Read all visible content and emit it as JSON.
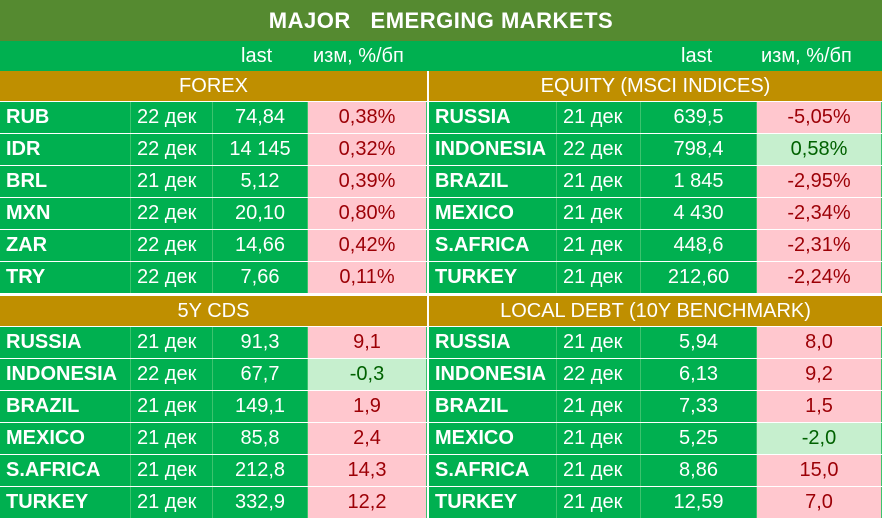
{
  "title": "MAJOR   EMERGING MARKETS",
  "columns": {
    "last": "last",
    "change": "изм, %/бп"
  },
  "quadrants": [
    {
      "section": "FOREX",
      "rows": [
        {
          "name": "RUB",
          "date": "22 дек",
          "last": "74,84",
          "change": "0,38%",
          "dir": "pos"
        },
        {
          "name": "IDR",
          "date": "22 дек",
          "last": "14 145",
          "change": "0,32%",
          "dir": "pos"
        },
        {
          "name": "BRL",
          "date": "21 дек",
          "last": "5,12",
          "change": "0,39%",
          "dir": "pos"
        },
        {
          "name": "MXN",
          "date": "22 дек",
          "last": "20,10",
          "change": "0,80%",
          "dir": "pos"
        },
        {
          "name": "ZAR",
          "date": "22 дек",
          "last": "14,66",
          "change": "0,42%",
          "dir": "pos"
        },
        {
          "name": "TRY",
          "date": "22 дек",
          "last": "7,66",
          "change": "0,11%",
          "dir": "pos"
        }
      ]
    },
    {
      "section": "EQUITY (MSCI INDICES)",
      "rows": [
        {
          "name": "RUSSIA",
          "date": "21 дек",
          "last": "639,5",
          "change": "-5,05%",
          "dir": "pos"
        },
        {
          "name": "INDONESIA",
          "date": "22 дек",
          "last": "798,4",
          "change": "0,58%",
          "dir": "neg"
        },
        {
          "name": "BRAZIL",
          "date": "21 дек",
          "last": "1 845",
          "change": "-2,95%",
          "dir": "pos"
        },
        {
          "name": "MEXICO",
          "date": "21 дек",
          "last": "4 430",
          "change": "-2,34%",
          "dir": "pos"
        },
        {
          "name": "S.AFRICA",
          "date": "21 дек",
          "last": "448,6",
          "change": "-2,31%",
          "dir": "pos"
        },
        {
          "name": "TURKEY",
          "date": "21 дек",
          "last": "212,60",
          "change": "-2,24%",
          "dir": "pos"
        }
      ]
    },
    {
      "section": "5Y CDS",
      "rows": [
        {
          "name": "RUSSIA",
          "date": "21 дек",
          "last": "91,3",
          "change": "9,1",
          "dir": "pos"
        },
        {
          "name": "INDONESIA",
          "date": "22 дек",
          "last": "67,7",
          "change": "-0,3",
          "dir": "neg"
        },
        {
          "name": "BRAZIL",
          "date": "21 дек",
          "last": "149,1",
          "change": "1,9",
          "dir": "pos"
        },
        {
          "name": "MEXICO",
          "date": "21 дек",
          "last": "85,8",
          "change": "2,4",
          "dir": "pos"
        },
        {
          "name": "S.AFRICA",
          "date": "21 дек",
          "last": "212,8",
          "change": "14,3",
          "dir": "pos"
        },
        {
          "name": "TURKEY",
          "date": "21 дек",
          "last": "332,9",
          "change": "12,2",
          "dir": "pos"
        }
      ]
    },
    {
      "section": "LOCAL DEBT (10Y BENCHMARK)",
      "rows": [
        {
          "name": "RUSSIA",
          "date": "21 дек",
          "last": "5,94",
          "change": "8,0",
          "dir": "pos"
        },
        {
          "name": "INDONESIA",
          "date": "22 дек",
          "last": "6,13",
          "change": "9,2",
          "dir": "pos"
        },
        {
          "name": "BRAZIL",
          "date": "21 дек",
          "last": "7,33",
          "change": "1,5",
          "dir": "pos"
        },
        {
          "name": "MEXICO",
          "date": "21 дек",
          "last": "5,25",
          "change": "-2,0",
          "dir": "neg"
        },
        {
          "name": "S.AFRICA",
          "date": "21 дек",
          "last": "8,86",
          "change": "15,0",
          "dir": "pos"
        },
        {
          "name": "TURKEY",
          "date": "21 дек",
          "last": "12,59",
          "change": "7,0",
          "dir": "pos"
        }
      ]
    }
  ]
}
